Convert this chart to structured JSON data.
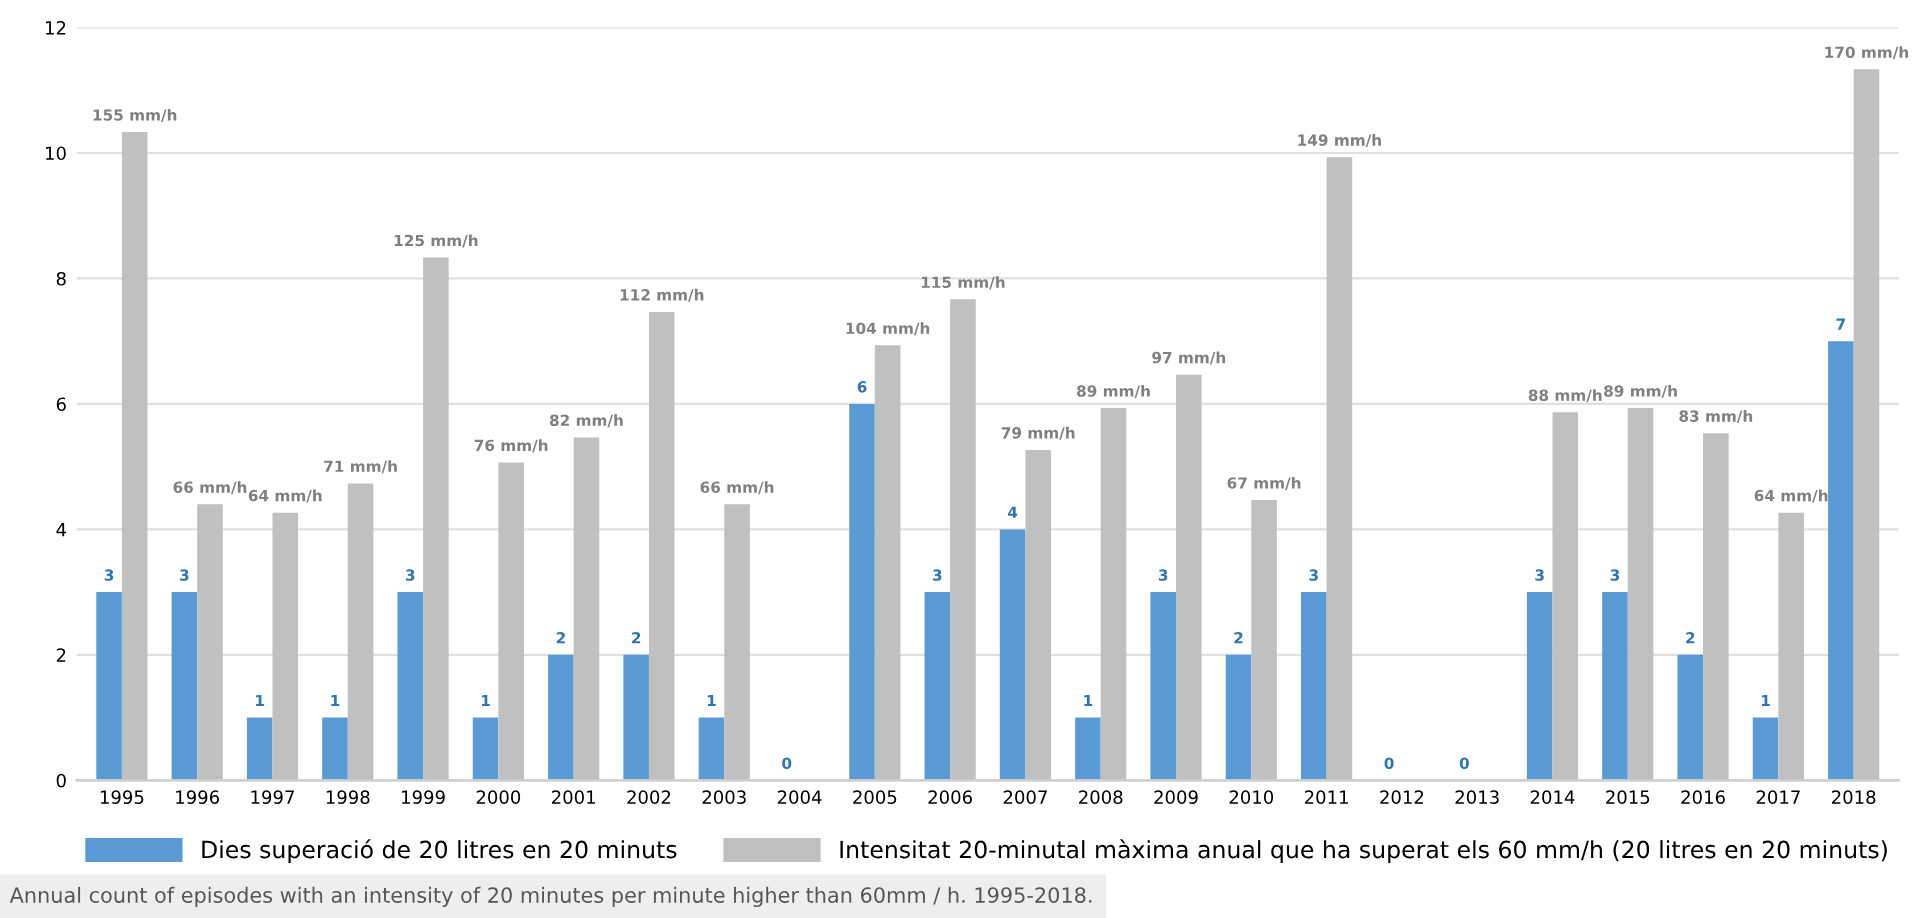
{
  "chart_data": {
    "type": "bar",
    "categories": [
      "1995",
      "1996",
      "1997",
      "1998",
      "1999",
      "2000",
      "2001",
      "2002",
      "2003",
      "2004",
      "2005",
      "2006",
      "2007",
      "2008",
      "2009",
      "2010",
      "2011",
      "2012",
      "2013",
      "2014",
      "2015",
      "2016",
      "2017",
      "2018"
    ],
    "series": [
      {
        "name": "Dies superació de 20 litres en 20 minuts",
        "color": "#5b9bd5",
        "values": [
          3,
          3,
          1,
          1,
          3,
          1,
          2,
          2,
          1,
          0,
          6,
          3,
          4,
          1,
          3,
          2,
          3,
          0,
          0,
          3,
          3,
          2,
          1,
          7
        ],
        "value_labels": [
          "3",
          "3",
          "1",
          "1",
          "3",
          "1",
          "2",
          "2",
          "1",
          "0",
          "6",
          "3",
          "4",
          "1",
          "3",
          "2",
          "3",
          "0",
          "0",
          "3",
          "3",
          "2",
          "1",
          "7"
        ]
      },
      {
        "name": "Intensitat 20-minutal màxima anual que ha superat els 60 mm/h (20 litres en 20 minuts)",
        "color": "#c0c0c0",
        "axis": "y2",
        "values": [
          155,
          66,
          64,
          71,
          125,
          76,
          82,
          112,
          66,
          null,
          104,
          115,
          79,
          89,
          97,
          67,
          149,
          null,
          null,
          88,
          89,
          83,
          64,
          170
        ],
        "value_labels": [
          "155 mm/h",
          "66 mm/h",
          "64 mm/h",
          "71 mm/h",
          "125 mm/h",
          "76 mm/h",
          "82 mm/h",
          "112 mm/h",
          "66 mm/h",
          null,
          "104 mm/h",
          "115 mm/h",
          "79 mm/h",
          "89 mm/h",
          "97 mm/h",
          "67 mm/h",
          "149 mm/h",
          null,
          null,
          "88 mm/h",
          "89 mm/h",
          "83 mm/h",
          "64 mm/h",
          "170 mm/h"
        ]
      }
    ],
    "ylim": [
      0,
      12
    ],
    "yticks": [
      0,
      2,
      4,
      6,
      8,
      10,
      12
    ],
    "y2lim": [
      0,
      180
    ],
    "tick_labels": "xy",
    "grid": "y",
    "legend": "bottom",
    "annotations": [
      "Annual count of episodes with an intensity of 20 minutes per minute higher than 60mm / h. 1995-2018."
    ]
  }
}
